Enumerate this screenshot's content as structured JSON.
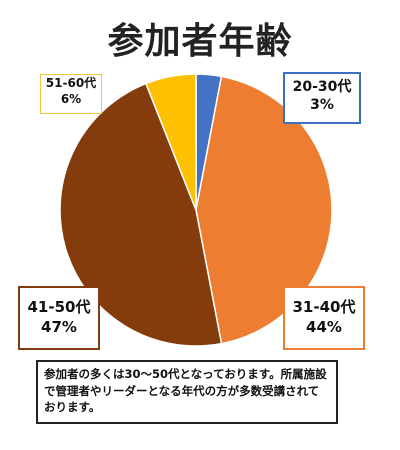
{
  "chart_data": {
    "type": "pie",
    "title": "参加者年齢",
    "categories": [
      "20-30代",
      "31-40代",
      "41-50代",
      "51-60代"
    ],
    "values": [
      3,
      44,
      47,
      6
    ],
    "labels": [
      "3%",
      "44%",
      "47%",
      "6%"
    ],
    "colors": [
      "#4472c4",
      "#ed7d31",
      "#843c0c",
      "#ffc000"
    ]
  },
  "note": "参加者の多くは30～50代となっております。所属施設で管理者やリーダーとなる年代の方が多数受講されております。"
}
